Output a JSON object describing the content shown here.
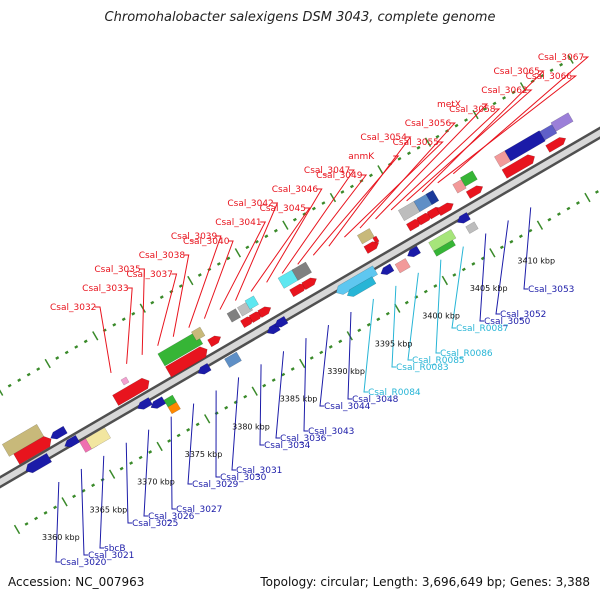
{
  "title": "Chromohalobacter salexigens DSM 3043, complete genome",
  "footer": {
    "accession": "Accession: NC_007963",
    "summary": "Topology: circular; Length: 3,696,649 bp; Genes: 3,388"
  },
  "scale_labels": [
    "3360 kbp",
    "3365 kbp",
    "3370 kbp",
    "3375 kbp",
    "3380 kbp",
    "3385 kbp",
    "3390 kbp",
    "3395 kbp",
    "3400 kbp",
    "3405 kbp",
    "3410 kbp"
  ],
  "upper_labels": [
    {
      "text": "Csal_3032",
      "color": "#e8141e"
    },
    {
      "text": "Csal_3033",
      "color": "#e8141e"
    },
    {
      "text": "Csal_3035",
      "color": "#e8141e"
    },
    {
      "text": "Csal_3037",
      "color": "#e8141e"
    },
    {
      "text": "Csal_3038",
      "color": "#e8141e"
    },
    {
      "text": "Csal_3039",
      "color": "#e8141e"
    },
    {
      "text": "Csal_3040",
      "color": "#e8141e"
    },
    {
      "text": "Csal_3041",
      "color": "#e8141e"
    },
    {
      "text": "Csal_3042",
      "color": "#e8141e"
    },
    {
      "text": "Csal_3045",
      "color": "#e8141e"
    },
    {
      "text": "Csal_3046",
      "color": "#e8141e"
    },
    {
      "text": "Csal_3047",
      "color": "#e8141e"
    },
    {
      "text": "Csal_3049",
      "color": "#e8141e"
    },
    {
      "text": "anmK",
      "color": "#e8141e"
    },
    {
      "text": "Csal_3054",
      "color": "#e8141e"
    },
    {
      "text": "Csal_3055",
      "color": "#e8141e"
    },
    {
      "text": "Csal_3056",
      "color": "#e8141e"
    },
    {
      "text": "metX",
      "color": "#e8141e"
    },
    {
      "text": "Csal_3058",
      "color": "#e8141e"
    },
    {
      "text": "Csal_3062",
      "color": "#e8141e"
    },
    {
      "text": "Csal_3065",
      "color": "#e8141e"
    },
    {
      "text": "Csal_3066",
      "color": "#e8141e"
    },
    {
      "text": "Csal_3067",
      "color": "#e8141e"
    }
  ],
  "lower_labels": [
    {
      "text": "Csal_3020",
      "color": "#1b1ba8"
    },
    {
      "text": "Csal_3021",
      "color": "#1b1ba8"
    },
    {
      "text": "sbcB",
      "color": "#1b1ba8"
    },
    {
      "text": "Csal_3025",
      "color": "#1b1ba8"
    },
    {
      "text": "Csal_3026",
      "color": "#1b1ba8"
    },
    {
      "text": "Csal_3027",
      "color": "#1b1ba8"
    },
    {
      "text": "Csal_3029",
      "color": "#1b1ba8"
    },
    {
      "text": "Csal_3030",
      "color": "#1b1ba8"
    },
    {
      "text": "Csal_3031",
      "color": "#1b1ba8"
    },
    {
      "text": "Csal_3034",
      "color": "#1b1ba8"
    },
    {
      "text": "Csal_3036",
      "color": "#1b1ba8"
    },
    {
      "text": "Csal_3043",
      "color": "#1b1ba8"
    },
    {
      "text": "Csal_3044",
      "color": "#1b1ba8"
    },
    {
      "text": "Csal_3048",
      "color": "#1b1ba8"
    },
    {
      "text": "Csal_R0084",
      "color": "#27b5d6"
    },
    {
      "text": "Csal_R0083",
      "color": "#27b5d6"
    },
    {
      "text": "Csal_R0085",
      "color": "#27b5d6"
    },
    {
      "text": "Csal_R0086",
      "color": "#27b5d6"
    },
    {
      "text": "Csal_R0087",
      "color": "#27b5d6"
    },
    {
      "text": "Csal_3050",
      "color": "#1b1ba8"
    },
    {
      "text": "Csal_3052",
      "color": "#1b1ba8"
    },
    {
      "text": "Csal_3053",
      "color": "#1b1ba8"
    }
  ],
  "colors": {
    "forward_gene": "#e8141e",
    "reverse_gene": "#1b1ba8",
    "rna_gene": "#27b5d6",
    "backbone": "#808080",
    "tick": "#3a8a2a"
  }
}
